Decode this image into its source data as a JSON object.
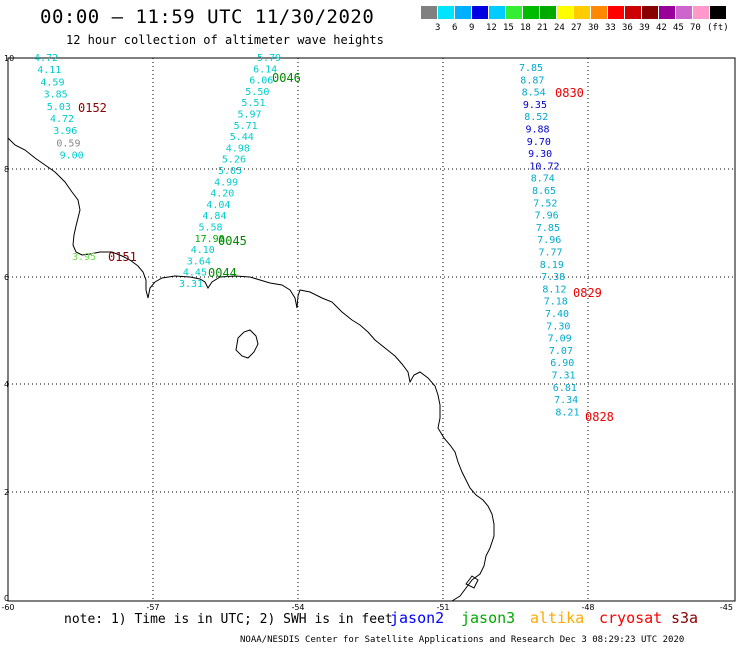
{
  "title": "00:00 – 11:59 UTC 11/30/2020",
  "subtitle": "12 hour collection of altimeter wave heights",
  "legend": {
    "swatches": [
      "#808080",
      "#00e5ff",
      "#00b0ff",
      "#0000e0",
      "#00ccff",
      "#33ee33",
      "#00bb00",
      "#00aa00",
      "#ffff00",
      "#ffcc00",
      "#ff8800",
      "#ff0000",
      "#cc0000",
      "#880000",
      "#990099",
      "#cc66cc",
      "#ff99cc",
      "#000000"
    ],
    "labels": [
      "3",
      "6",
      "9",
      "12",
      "15",
      "18",
      "21",
      "24",
      "27",
      "30",
      "33",
      "36",
      "39",
      "42",
      "45",
      "70",
      "(ft)"
    ]
  },
  "axes": {
    "lon_ticks": [
      "-60",
      "-57",
      "-54",
      "-51",
      "-48",
      "-45"
    ],
    "lat_ticks": [
      "0",
      "2",
      "4",
      "6",
      "8",
      "10"
    ]
  },
  "tracks": {
    "track_0152": {
      "time": "0152",
      "time_color": "#8b0000",
      "color": "#00cccc",
      "values": [
        "4.72",
        "4.11",
        "4.59",
        "3.85",
        "5.03",
        "4.72",
        "3.96",
        "0.59",
        "9.00"
      ],
      "colors": [
        "#00cccc",
        "#00cccc",
        "#00cccc",
        "#00cccc",
        "#00cccc",
        "#00cccc",
        "#00cccc",
        "#888888",
        "#00cccc"
      ]
    },
    "track_0151": {
      "time": "0151",
      "time_color": "#8b0000",
      "values": [
        "3.95"
      ],
      "colors": [
        "#66dd44"
      ]
    },
    "track_0046": {
      "time": "0046",
      "time_color": "#008800",
      "values": [
        "5.79",
        "6.14",
        "6.06",
        "5.50",
        "5.51",
        "5.97",
        "5.71",
        "5.44",
        "4.98",
        "5.26",
        "5.05",
        "4.99",
        "4.20",
        "4.04",
        "4.84",
        "5.58",
        "17.98",
        "4.10",
        "3.64",
        "4.45",
        "3.31"
      ],
      "colors": [
        "#00cccc",
        "#00cccc",
        "#00cccc",
        "#00cccc",
        "#00cccc",
        "#00cccc",
        "#00cccc",
        "#00cccc",
        "#00cccc",
        "#00cccc",
        "#00cccc",
        "#00cccc",
        "#00cccc",
        "#00cccc",
        "#00cccc",
        "#00cccc",
        "#00aa00",
        "#00cccc",
        "#00cccc",
        "#00cccc",
        "#00cccc"
      ]
    },
    "track_0045": {
      "time": "0045",
      "time_color": "#008800"
    },
    "track_0044": {
      "time": "0044",
      "time_color": "#008800"
    },
    "track_0830": {
      "time": "0830",
      "time_color": "#ee0000",
      "values": [
        "7.85",
        "8.87",
        "8.54",
        "9.35",
        "8.52",
        "9.88",
        "9.70",
        "9.30",
        "10.72",
        "8.74",
        "8.65",
        "7.52",
        "7.96",
        "7.85",
        "7.96",
        "7.77",
        "8.19",
        "7.38",
        "8.12",
        "7.18",
        "7.40",
        "7.30",
        "7.09",
        "7.07",
        "6.90",
        "7.31",
        "6.81",
        "7.34",
        "8.21"
      ],
      "colors": [
        "#00aacc",
        "#00aacc",
        "#00aacc",
        "#0000cc",
        "#00aacc",
        "#0000cc",
        "#0000cc",
        "#0000cc",
        "#0000cc",
        "#00aacc",
        "#00aacc",
        "#00aacc",
        "#00aacc",
        "#00aacc",
        "#00aacc",
        "#00aacc",
        "#00aacc",
        "#00aacc",
        "#00aacc",
        "#00aacc",
        "#00aacc",
        "#00aacc",
        "#00aacc",
        "#00aacc",
        "#00aacc",
        "#00aacc",
        "#00aacc",
        "#00aacc",
        "#00aacc"
      ]
    },
    "track_0829": {
      "time": "0829",
      "time_color": "#ee0000"
    },
    "track_0828": {
      "time": "0828",
      "time_color": "#ee0000"
    }
  },
  "note": "note: 1) Time is in UTC; 2) SWH is in feet",
  "satellites": [
    {
      "name": "jason2",
      "color": "#0000ff"
    },
    {
      "name": "jason3",
      "color": "#00aa00"
    },
    {
      "name": "altika",
      "color": "#ffaa00"
    },
    {
      "name": "cryosat",
      "color": "#ff0000"
    },
    {
      "name": "s3a",
      "color": "#880000"
    }
  ],
  "credit": "NOAA/NESDIS Center for Satellite Applications and Research   Dec  3 08:29:23 UTC 2020"
}
